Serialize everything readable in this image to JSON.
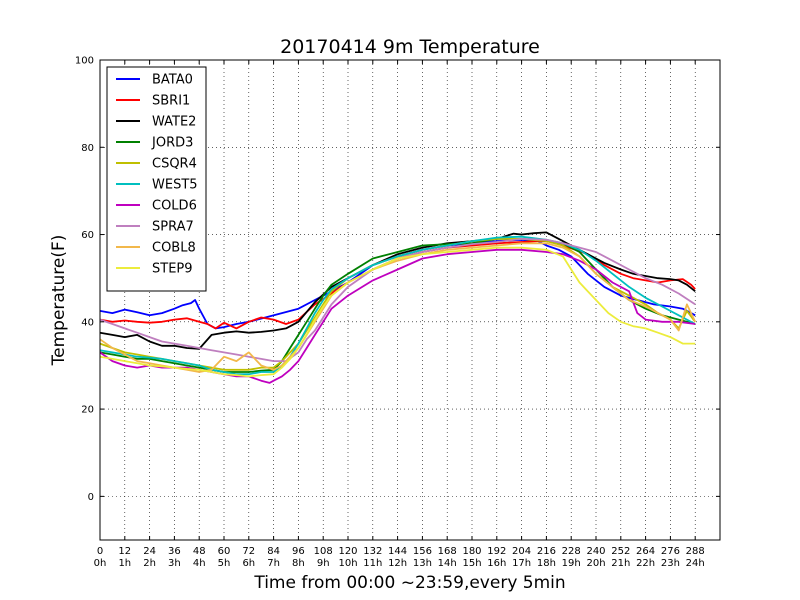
{
  "chart_data": {
    "type": "line",
    "title": "20170414 9m Temperature",
    "xlabel": "Time from 00:00 ~23:59,every 5min",
    "ylabel": "Temperature(F)",
    "xlim": [
      0,
      300
    ],
    "ylim": [
      -10,
      100
    ],
    "yticks": [
      "0",
      "20",
      "40",
      "60",
      "80",
      "100"
    ],
    "ytick_values": [
      0,
      20,
      40,
      60,
      80,
      100
    ],
    "xticks": [
      {
        "value": 0,
        "top": "0",
        "bottom": "0h"
      },
      {
        "value": 12,
        "top": "12",
        "bottom": "1h"
      },
      {
        "value": 24,
        "top": "24",
        "bottom": "2h"
      },
      {
        "value": 36,
        "top": "36",
        "bottom": "3h"
      },
      {
        "value": 48,
        "top": "48",
        "bottom": "4h"
      },
      {
        "value": 60,
        "top": "60",
        "bottom": "5h"
      },
      {
        "value": 72,
        "top": "72",
        "bottom": "6h"
      },
      {
        "value": 84,
        "top": "84",
        "bottom": "7h"
      },
      {
        "value": 96,
        "top": "96",
        "bottom": "8h"
      },
      {
        "value": 108,
        "top": "108",
        "bottom": "9h"
      },
      {
        "value": 120,
        "top": "120",
        "bottom": "10h"
      },
      {
        "value": 132,
        "top": "132",
        "bottom": "11h"
      },
      {
        "value": 144,
        "top": "144",
        "bottom": "12h"
      },
      {
        "value": 156,
        "top": "156",
        "bottom": "13h"
      },
      {
        "value": 168,
        "top": "168",
        "bottom": "14h"
      },
      {
        "value": 180,
        "top": "180",
        "bottom": "15h"
      },
      {
        "value": 192,
        "top": "192",
        "bottom": "16h"
      },
      {
        "value": 204,
        "top": "204",
        "bottom": "17h"
      },
      {
        "value": 216,
        "top": "216",
        "bottom": "18h"
      },
      {
        "value": 228,
        "top": "228",
        "bottom": "19h"
      },
      {
        "value": 240,
        "top": "240",
        "bottom": "20h"
      },
      {
        "value": 252,
        "top": "252",
        "bottom": "21h"
      },
      {
        "value": 264,
        "top": "264",
        "bottom": "22h"
      },
      {
        "value": 276,
        "top": "276",
        "bottom": "23h"
      },
      {
        "value": 288,
        "top": "288",
        "bottom": "24h"
      }
    ],
    "grid": true,
    "legend": "top-left",
    "series": [
      {
        "name": "BATA0",
        "color": "#0000ff",
        "x": [
          0,
          6,
          12,
          18,
          24,
          30,
          36,
          40,
          44,
          46,
          48,
          52,
          56,
          60,
          66,
          72,
          80,
          88,
          96,
          104,
          112,
          120,
          132,
          144,
          156,
          168,
          180,
          192,
          204,
          212,
          216,
          222,
          228,
          236,
          244,
          252,
          260,
          268,
          276,
          282,
          286,
          288
        ],
        "y": [
          42.5,
          42,
          42.8,
          42.2,
          41.5,
          42,
          43,
          43.8,
          44.3,
          45,
          43,
          39.5,
          38.5,
          38.8,
          39.5,
          40,
          41,
          42,
          43,
          45,
          47,
          49,
          53,
          55,
          56.5,
          57.5,
          58,
          58.5,
          58.8,
          58.5,
          57.5,
          56.5,
          55,
          51,
          48,
          46,
          45,
          44,
          43.5,
          43,
          42,
          41.5
        ]
      },
      {
        "name": "SBRI1",
        "color": "#ff0000",
        "x": [
          0,
          6,
          12,
          18,
          24,
          30,
          36,
          42,
          48,
          52,
          56,
          60,
          66,
          72,
          78,
          84,
          90,
          96,
          104,
          112,
          120,
          132,
          144,
          156,
          168,
          180,
          192,
          204,
          212,
          218,
          224,
          230,
          236,
          244,
          252,
          258,
          264,
          270,
          276,
          282,
          286,
          288
        ],
        "y": [
          40.5,
          40,
          40.3,
          40,
          39.8,
          40,
          40.5,
          40.8,
          40,
          39.5,
          38.5,
          39.8,
          38.5,
          40,
          41,
          40.5,
          39.5,
          40.5,
          44,
          46.5,
          49,
          52,
          54.5,
          56,
          57,
          57.5,
          58,
          58.3,
          58.5,
          58.5,
          57.5,
          56.5,
          55.5,
          53,
          51,
          50,
          49.5,
          49,
          49.5,
          49.8,
          48.5,
          47.5
        ]
      },
      {
        "name": "WATE2",
        "color": "#000000",
        "x": [
          0,
          6,
          12,
          18,
          24,
          30,
          36,
          42,
          48,
          54,
          60,
          66,
          72,
          78,
          84,
          90,
          96,
          104,
          112,
          120,
          132,
          144,
          156,
          168,
          180,
          192,
          200,
          204,
          210,
          216,
          222,
          228,
          236,
          244,
          252,
          258,
          264,
          270,
          276,
          280,
          284,
          288
        ],
        "y": [
          37.5,
          37,
          36.5,
          37,
          35.5,
          34.5,
          34.5,
          34,
          33.8,
          37,
          37.5,
          37.8,
          37.5,
          37.7,
          38,
          38.5,
          40,
          44.5,
          48,
          50,
          53,
          55.5,
          57,
          58,
          58.5,
          59,
          60.2,
          60,
          60.3,
          60.5,
          59,
          57.5,
          55.5,
          53.5,
          52,
          51,
          50.5,
          50,
          49.8,
          49.5,
          48.5,
          47
        ]
      },
      {
        "name": "JORD3",
        "color": "#008000",
        "x": [
          0,
          6,
          12,
          18,
          24,
          30,
          36,
          42,
          48,
          54,
          60,
          66,
          72,
          78,
          84,
          88,
          92,
          96,
          100,
          104,
          108,
          112,
          120,
          132,
          144,
          156,
          168,
          180,
          192,
          204,
          216,
          224,
          232,
          240,
          248,
          256,
          264,
          272,
          280,
          288
        ],
        "y": [
          33,
          32.5,
          32,
          31.5,
          31.5,
          31,
          30.5,
          30,
          29.5,
          29,
          28.5,
          28.5,
          28.5,
          28.8,
          29,
          31,
          34,
          37,
          40,
          43,
          46,
          48.5,
          51,
          54.5,
          56,
          57.5,
          57.8,
          58,
          59,
          59,
          58.5,
          58,
          56,
          52,
          48,
          45,
          43,
          41.5,
          40.5,
          39.5
        ]
      },
      {
        "name": "CSQR4",
        "color": "#bfbf00",
        "x": [
          0,
          6,
          12,
          18,
          24,
          30,
          36,
          42,
          48,
          54,
          60,
          66,
          72,
          78,
          84,
          88,
          92,
          96,
          100,
          104,
          108,
          112,
          120,
          132,
          144,
          156,
          168,
          180,
          192,
          204,
          216,
          224,
          232,
          240,
          248,
          256,
          264,
          270,
          276,
          280,
          284,
          288
        ],
        "y": [
          35,
          34,
          33,
          32.5,
          32,
          31.5,
          31,
          30.5,
          30,
          29.5,
          29,
          29,
          29,
          29.5,
          29.5,
          31,
          33,
          35,
          38,
          41,
          44,
          47,
          50,
          53,
          55,
          56.5,
          57.5,
          58.5,
          59,
          59,
          58.5,
          57.5,
          55,
          51,
          48,
          46,
          44,
          42,
          40.5,
          38.5,
          42.5,
          40
        ]
      },
      {
        "name": "WEST5",
        "color": "#00bfbf",
        "x": [
          0,
          6,
          12,
          18,
          24,
          30,
          36,
          42,
          48,
          54,
          60,
          66,
          72,
          78,
          84,
          88,
          92,
          96,
          100,
          104,
          108,
          112,
          120,
          132,
          144,
          156,
          168,
          180,
          192,
          204,
          216,
          224,
          232,
          240,
          248,
          256,
          264,
          272,
          280,
          288
        ],
        "y": [
          33.5,
          33,
          32.5,
          32,
          31.8,
          31.5,
          31,
          30.5,
          30,
          29,
          28.5,
          28,
          28,
          28.5,
          28.5,
          30,
          32,
          35,
          38.5,
          42,
          45,
          47.5,
          50,
          53,
          55,
          56.5,
          57.5,
          58.5,
          59.3,
          59.5,
          58.8,
          58,
          56.5,
          54,
          51,
          48,
          45.5,
          43.5,
          41.5,
          39.5
        ]
      },
      {
        "name": "COLD6",
        "color": "#bf00bf",
        "x": [
          0,
          6,
          12,
          18,
          24,
          30,
          36,
          42,
          48,
          54,
          60,
          66,
          72,
          78,
          82,
          84,
          88,
          92,
          96,
          100,
          104,
          108,
          112,
          120,
          132,
          144,
          156,
          168,
          180,
          192,
          204,
          216,
          224,
          232,
          240,
          248,
          256,
          260,
          264,
          272,
          280,
          288
        ],
        "y": [
          33,
          31,
          30,
          29.5,
          30,
          29.5,
          29.5,
          29.5,
          29,
          28.5,
          28,
          27.5,
          27.5,
          26.5,
          26,
          26.5,
          27.5,
          29,
          31,
          34,
          37,
          40,
          43,
          46,
          49.5,
          52,
          54.5,
          55.5,
          56,
          56.5,
          56.5,
          56,
          55.5,
          54,
          52,
          49,
          47,
          42,
          40.5,
          40,
          40,
          39.5
        ]
      },
      {
        "name": "SPRA7",
        "color": "#bf7fbf",
        "x": [
          0,
          6,
          12,
          18,
          24,
          30,
          36,
          42,
          48,
          54,
          60,
          66,
          72,
          78,
          84,
          90,
          96,
          100,
          104,
          108,
          112,
          120,
          132,
          144,
          156,
          168,
          180,
          192,
          204,
          216,
          224,
          232,
          240,
          248,
          256,
          264,
          272,
          280,
          288
        ],
        "y": [
          40.5,
          39.5,
          38.5,
          37.5,
          36.5,
          35.5,
          35,
          34.5,
          34,
          33.5,
          33,
          32.5,
          32,
          31.5,
          31,
          31,
          33,
          36,
          38,
          41,
          44,
          48,
          52,
          54.5,
          56,
          57,
          57.8,
          58.3,
          59,
          58.8,
          58,
          57,
          56,
          54,
          52,
          50,
          48.5,
          46.5,
          44
        ]
      },
      {
        "name": "COBL8",
        "color": "#f2b84b",
        "x": [
          0,
          6,
          12,
          18,
          24,
          30,
          36,
          42,
          48,
          54,
          60,
          66,
          72,
          78,
          84,
          88,
          92,
          96,
          100,
          104,
          108,
          112,
          120,
          132,
          144,
          156,
          168,
          180,
          192,
          204,
          216,
          224,
          232,
          240,
          248,
          256,
          264,
          270,
          276,
          280,
          284,
          288
        ],
        "y": [
          36,
          34,
          32.5,
          31,
          30.5,
          30,
          29.5,
          29,
          28.5,
          29,
          32,
          31,
          33,
          30,
          29,
          30,
          32,
          34,
          37,
          40,
          43,
          46,
          49,
          52,
          54,
          55.5,
          56.5,
          57,
          57.5,
          58,
          58,
          57,
          55,
          51,
          48,
          45,
          43.5,
          42,
          40.5,
          38,
          44,
          40
        ]
      },
      {
        "name": "STEP9",
        "color": "#ecec3c",
        "x": [
          0,
          6,
          12,
          18,
          24,
          30,
          36,
          42,
          48,
          54,
          60,
          66,
          72,
          78,
          84,
          88,
          92,
          96,
          100,
          104,
          108,
          112,
          120,
          132,
          144,
          156,
          168,
          180,
          192,
          204,
          216,
          224,
          228,
          232,
          236,
          240,
          246,
          252,
          258,
          264,
          270,
          276,
          282,
          288
        ],
        "y": [
          32,
          31.5,
          31,
          30.5,
          30,
          29.8,
          29.5,
          29.2,
          29,
          28.5,
          28,
          27.8,
          27.5,
          27.8,
          28,
          29.5,
          31.5,
          34,
          37,
          40.5,
          43.5,
          46,
          49,
          52,
          54.5,
          55.5,
          56,
          56.5,
          57,
          57,
          56.5,
          55,
          52,
          49,
          47,
          45,
          42,
          40,
          39,
          38.5,
          37.5,
          36.5,
          35,
          35
        ]
      }
    ]
  }
}
